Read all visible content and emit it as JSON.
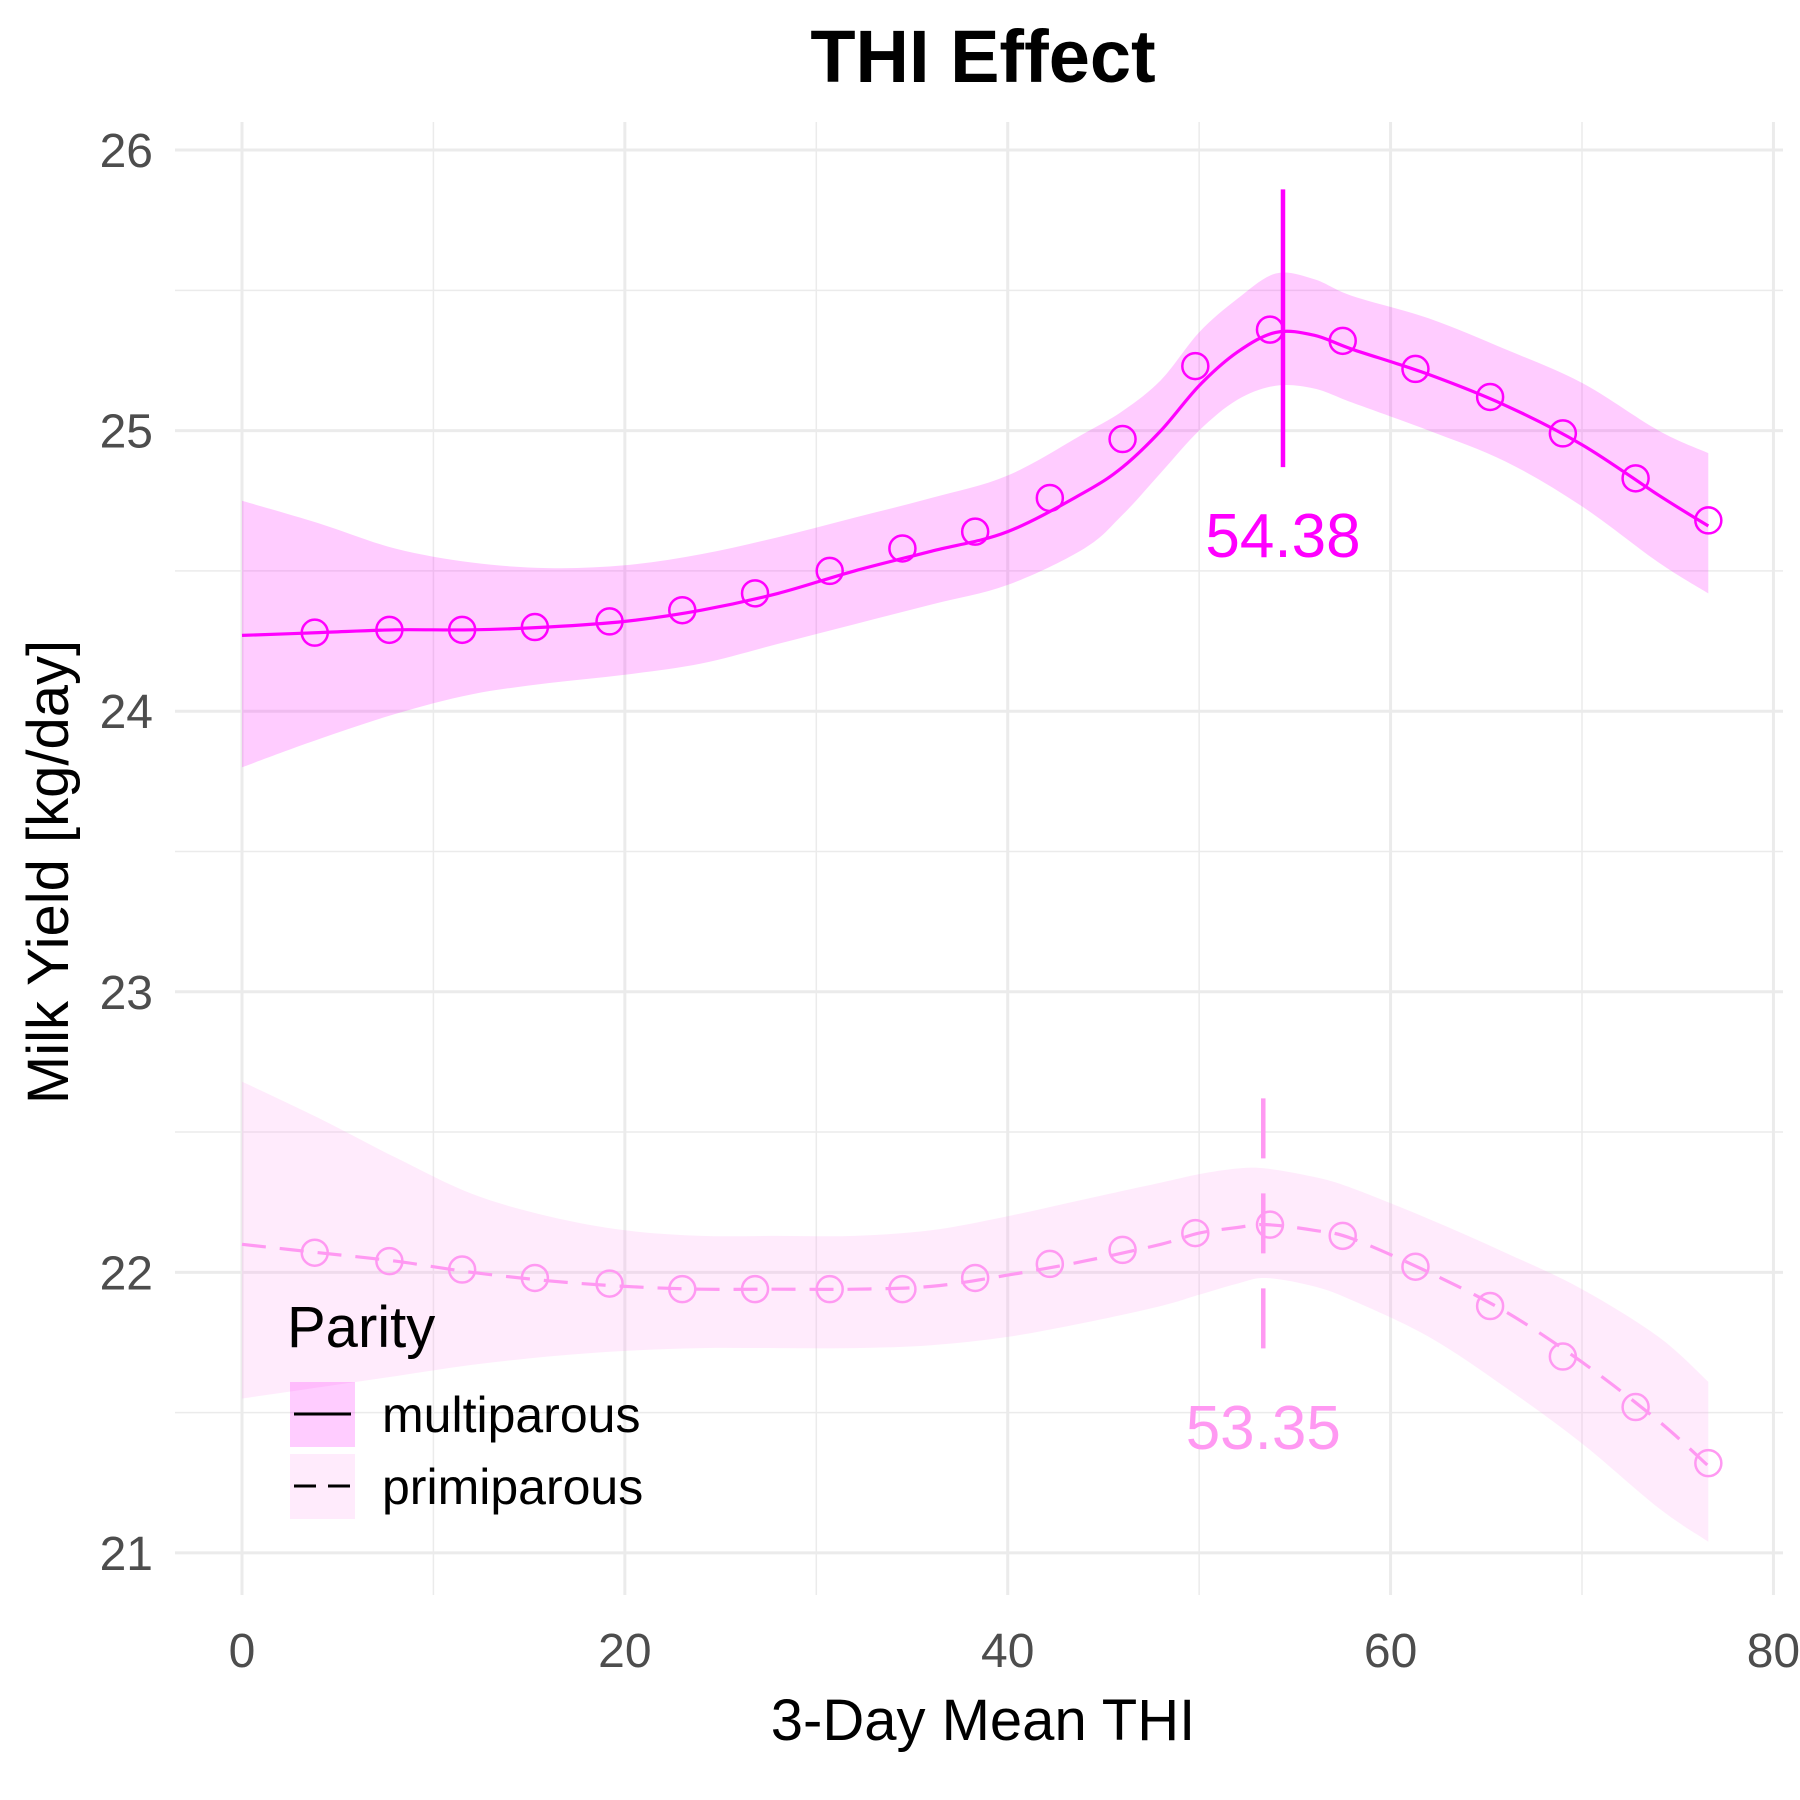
{
  "chart_data": {
    "type": "line",
    "title": "THI Effect",
    "xlabel": "3-Day Mean THI",
    "ylabel": "Milk Yield [kg/day]",
    "xlim": [
      -3.5,
      80.5
    ],
    "ylim": [
      20.85,
      26.1
    ],
    "x_ticks": [
      0,
      20,
      40,
      60,
      80
    ],
    "x_tick_labels": [
      "0",
      "20",
      "40",
      "60",
      "80"
    ],
    "y_ticks": [
      21,
      22,
      23,
      24,
      25,
      26
    ],
    "y_tick_labels": [
      "21",
      "22",
      "23",
      "24",
      "25",
      "26"
    ],
    "grid": true,
    "legend": {
      "title": "Parity",
      "position": "bottom-left"
    },
    "series": [
      {
        "name": "multiparous",
        "color": "#ff00ff",
        "linestyle": "solid",
        "line": {
          "x": [
            0,
            4,
            8,
            12,
            16,
            20,
            24,
            28,
            32,
            36,
            40,
            44,
            46,
            48,
            50,
            52,
            54,
            56,
            58,
            62,
            66,
            70,
            74,
            76.6
          ],
          "y": [
            24.27,
            24.28,
            24.29,
            24.29,
            24.3,
            24.32,
            24.36,
            24.42,
            24.5,
            24.57,
            24.64,
            24.78,
            24.87,
            25.0,
            25.16,
            25.28,
            25.35,
            25.34,
            25.29,
            25.2,
            25.09,
            24.95,
            24.77,
            24.66
          ]
        },
        "points": {
          "x": [
            3.8,
            7.7,
            11.5,
            15.3,
            19.2,
            23.0,
            26.8,
            30.7,
            34.5,
            38.3,
            42.2,
            46.0,
            49.8,
            53.7,
            57.5,
            61.3,
            65.2,
            69.0,
            72.8,
            76.6
          ],
          "y": [
            24.28,
            24.29,
            24.29,
            24.3,
            24.32,
            24.36,
            24.42,
            24.5,
            24.58,
            24.64,
            24.76,
            24.97,
            25.23,
            25.36,
            25.32,
            25.22,
            25.12,
            24.99,
            24.83,
            24.68
          ]
        },
        "ci_lower": [
          23.8,
          23.9,
          23.99,
          24.06,
          24.1,
          24.13,
          24.17,
          24.24,
          24.31,
          24.38,
          24.45,
          24.58,
          24.7,
          24.85,
          25.0,
          25.11,
          25.16,
          25.15,
          25.1,
          25.0,
          24.89,
          24.73,
          24.53,
          24.42
        ],
        "ci_upper": [
          24.75,
          24.67,
          24.58,
          24.53,
          24.51,
          24.52,
          24.56,
          24.62,
          24.69,
          24.76,
          24.84,
          24.99,
          25.07,
          25.18,
          25.35,
          25.47,
          25.56,
          25.54,
          25.48,
          25.4,
          25.29,
          25.17,
          25.0,
          24.92
        ],
        "vline": {
          "x": 54.38,
          "ymin": 24.87,
          "ymax": 25.86
        },
        "label": {
          "text": "54.38",
          "x": 54.38,
          "y": 24.55
        }
      },
      {
        "name": "primiparous",
        "color": "#ff99f2",
        "linestyle": "dashed",
        "line": {
          "x": [
            0,
            4,
            8,
            12,
            16,
            20,
            24,
            28,
            32,
            36,
            40,
            44,
            48,
            50,
            52,
            53.5,
            56,
            58,
            62,
            66,
            70,
            74,
            76.6
          ],
          "y": [
            22.1,
            22.07,
            22.04,
            22.0,
            21.97,
            21.95,
            21.94,
            21.94,
            21.94,
            21.95,
            21.99,
            22.04,
            22.1,
            22.14,
            22.16,
            22.17,
            22.15,
            22.12,
            22.0,
            21.86,
            21.68,
            21.47,
            21.31
          ]
        },
        "points": {
          "x": [
            3.8,
            7.7,
            11.5,
            15.3,
            19.2,
            23.0,
            26.8,
            30.7,
            34.5,
            38.3,
            42.2,
            46.0,
            49.8,
            53.7,
            57.5,
            61.3,
            65.2,
            69.0,
            72.8,
            76.6
          ],
          "y": [
            22.07,
            22.04,
            22.01,
            21.98,
            21.96,
            21.94,
            21.94,
            21.94,
            21.94,
            21.98,
            22.03,
            22.08,
            22.14,
            22.17,
            22.13,
            22.02,
            21.88,
            21.7,
            21.52,
            21.32
          ]
        },
        "ci_lower": [
          21.55,
          21.59,
          21.63,
          21.67,
          21.7,
          21.72,
          21.73,
          21.73,
          21.73,
          21.74,
          21.77,
          21.82,
          21.88,
          21.92,
          21.96,
          21.98,
          21.95,
          21.9,
          21.77,
          21.59,
          21.39,
          21.16,
          21.04
        ],
        "ci_upper": [
          22.68,
          22.55,
          22.41,
          22.28,
          22.2,
          22.15,
          22.13,
          22.13,
          22.13,
          22.15,
          22.2,
          22.26,
          22.32,
          22.35,
          22.37,
          22.37,
          22.34,
          22.3,
          22.19,
          22.07,
          21.94,
          21.77,
          21.61
        ],
        "vline": {
          "x": 53.35,
          "ymin": 21.66,
          "ymax": 22.62
        },
        "label": {
          "text": "53.35",
          "x": 53.35,
          "y": 21.37
        }
      }
    ]
  }
}
